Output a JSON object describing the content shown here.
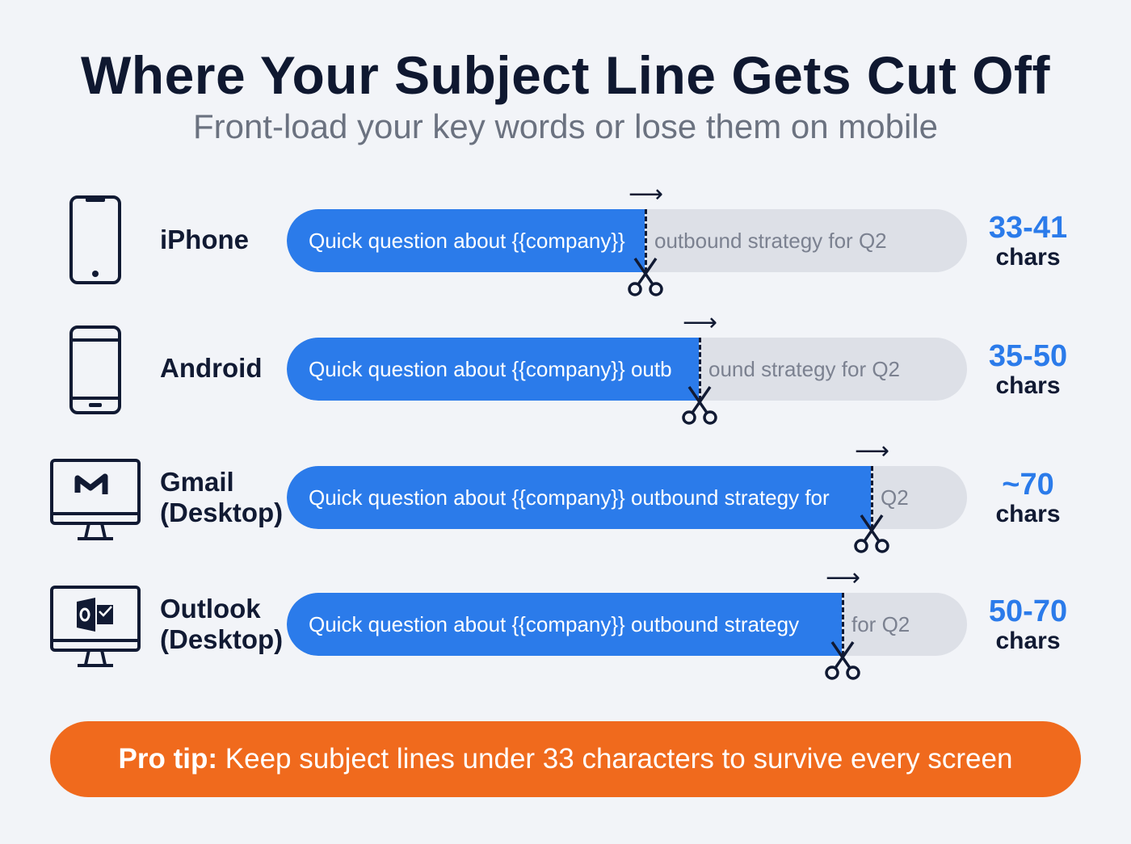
{
  "title": "Where Your Subject Line Gets Cut Off",
  "subtitle": "Front-load your key words or lose them on mobile",
  "colors": {
    "accent": "#2b7bea",
    "tip": "#f06a1d",
    "text": "#111a33",
    "track": "#dde0e7"
  },
  "rows": [
    {
      "icon": "iphone-icon",
      "device": "iPhone",
      "device2": "",
      "visible": "Quick question about {{company}}",
      "hidden": "outbound strategy for Q2",
      "limit": "33-41",
      "unit": "chars"
    },
    {
      "icon": "android-phone-icon",
      "device": "Android",
      "device2": "",
      "visible": "Quick question about {{company}} outb",
      "hidden": "ound strategy for Q2",
      "limit": "35-50",
      "unit": "chars"
    },
    {
      "icon": "gmail-desktop-icon",
      "device": "Gmail",
      "device2": "(Desktop)",
      "visible": "Quick question about {{company}} outbound strategy for",
      "hidden": "Q2",
      "limit": "~70",
      "unit": "chars"
    },
    {
      "icon": "outlook-desktop-icon",
      "device": "Outlook",
      "device2": "(Desktop)",
      "visible": "Quick question about {{company}} outbound strategy",
      "hidden": "for Q2",
      "limit": "50-70",
      "unit": "chars"
    }
  ],
  "tip": {
    "label": "Pro tip:",
    "text": " Keep subject lines under 33 characters to survive every screen"
  }
}
